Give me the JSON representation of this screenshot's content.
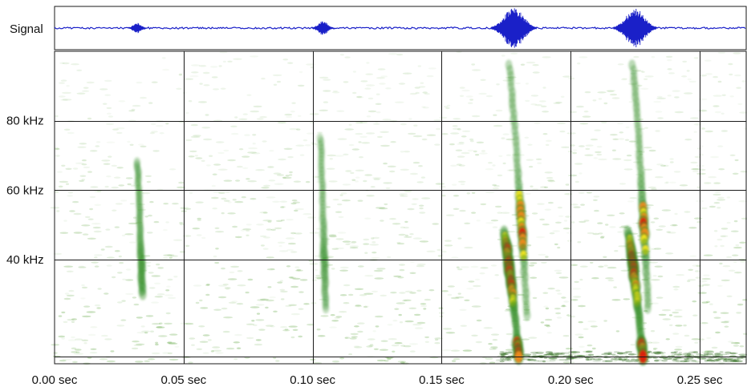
{
  "chart_data": [
    {
      "type": "line",
      "panel": "waveform",
      "ylabel": "Signal",
      "color": "#1a20c8",
      "bursts": [
        {
          "t": 0.032,
          "amp": 0.25
        },
        {
          "t": 0.104,
          "amp": 0.35
        },
        {
          "t": 0.178,
          "amp": 1.0
        },
        {
          "t": 0.225,
          "amp": 0.95
        }
      ]
    },
    {
      "type": "heatmap",
      "panel": "spectrogram",
      "x_unit": "sec",
      "y_unit": "kHz",
      "xlim": [
        0.0,
        0.268
      ],
      "ylim": [
        10,
        100
      ],
      "x_ticks": [
        {
          "value": 0.0,
          "label": "0.00 sec"
        },
        {
          "value": 0.05,
          "label": "0.05 sec"
        },
        {
          "value": 0.1,
          "label": "0.10 sec"
        },
        {
          "value": 0.15,
          "label": "0.15 sec"
        },
        {
          "value": 0.2,
          "label": "0.20 sec"
        },
        {
          "value": 0.25,
          "label": "0.25 sec"
        }
      ],
      "y_ticks": [
        {
          "value": 40,
          "label": "40 kHz"
        },
        {
          "value": 60,
          "label": "60 kHz"
        },
        {
          "value": 80,
          "label": "80 kHz"
        }
      ],
      "extra_gridline_khz": 12,
      "grid": true,
      "colormap": [
        "#ffffff",
        "#2e8b22",
        "#f5e61c",
        "#f08a1a",
        "#e02010"
      ],
      "calls": [
        {
          "start_s": 0.032,
          "end_s": 0.034,
          "f_start_khz": 68,
          "f_end_khz": 30,
          "peak_khz": 37,
          "intensity": 0.35
        },
        {
          "start_s": 0.103,
          "end_s": 0.105,
          "f_start_khz": 75,
          "f_end_khz": 26,
          "peak_khz": 40,
          "intensity": 0.35
        },
        {
          "start_s": 0.174,
          "end_s": 0.18,
          "f_start_khz": 48,
          "f_end_khz": 12,
          "peak_khz": 38,
          "intensity": 1.0
        },
        {
          "start_s": 0.176,
          "end_s": 0.183,
          "f_start_khz": 96,
          "f_end_khz": 24,
          "peak_khz": 50,
          "intensity": 0.85
        },
        {
          "start_s": 0.222,
          "end_s": 0.228,
          "f_start_khz": 48,
          "f_end_khz": 12,
          "peak_khz": 38,
          "intensity": 1.0
        },
        {
          "start_s": 0.224,
          "end_s": 0.23,
          "f_start_khz": 96,
          "f_end_khz": 26,
          "peak_khz": 50,
          "intensity": 0.8
        }
      ]
    }
  ]
}
